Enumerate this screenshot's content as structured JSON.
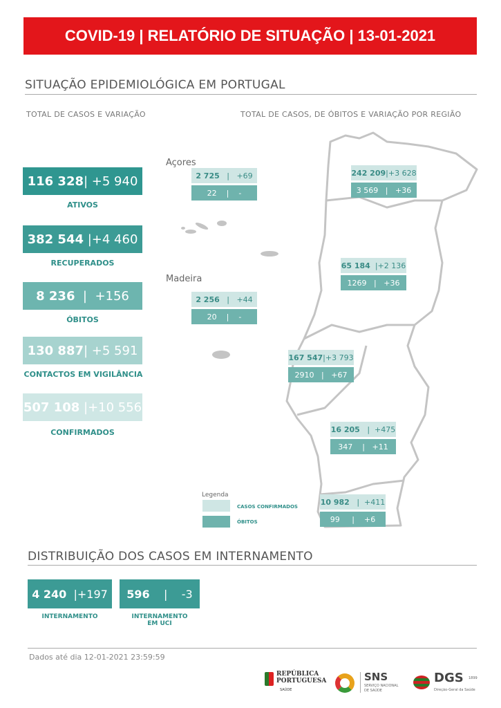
{
  "banner": {
    "title": "COVID-19 | RELATÓRIO DE SITUAÇÃO | 13-01-2021"
  },
  "section1": {
    "title": "SITUAÇÃO EPIDEMIOLÓGICA EM PORTUGAL",
    "left_subtitle": "TOTAL DE CASOS E VARIAÇÃO",
    "right_subtitle": "TOTAL DE CASOS, DE ÓBITOS E VARIAÇÃO POR REGIÃO"
  },
  "kpis": [
    {
      "value": "116 328",
      "change": "+5 940",
      "label": "ATIVOS",
      "color": "#2f9690"
    },
    {
      "value": "382 544",
      "change": "+4 460",
      "label": "RECUPERADOS",
      "color": "#3c9b95"
    },
    {
      "value": "8 236",
      "change": "+156",
      "label": "ÓBITOS",
      "color": "#6db5af"
    },
    {
      "value": "130 887",
      "change": "+5 591",
      "label": "CONTACTOS EM VIGILÂNCIA",
      "color": "#a7d3cf"
    },
    {
      "value": "507 108",
      "change": "+10 556",
      "label": "CONFIRMADOS",
      "color": "#cfe7e5"
    }
  ],
  "regions": {
    "acores": {
      "name": "Açores",
      "cases": "2 725",
      "cases_change": "+69",
      "deaths": "22",
      "deaths_change": "-"
    },
    "madeira": {
      "name": "Madeira",
      "cases": "2 256",
      "cases_change": "+44",
      "deaths": "20",
      "deaths_change": "-"
    },
    "norte": {
      "cases": "242 209",
      "cases_change": "+3 628",
      "deaths": "3 569",
      "deaths_change": "+36"
    },
    "centro": {
      "cases": "65 184",
      "cases_change": "+2 136",
      "deaths": "1269",
      "deaths_change": "+36"
    },
    "lvt": {
      "cases": "167 547",
      "cases_change": "+3 793",
      "deaths": "2910",
      "deaths_change": "+67"
    },
    "alentejo": {
      "cases": "16 205",
      "cases_change": "+475",
      "deaths": "347",
      "deaths_change": "+11"
    },
    "algarve": {
      "cases": "10 982",
      "cases_change": "+411",
      "deaths": "99",
      "deaths_change": "+6"
    }
  },
  "legend": {
    "title": "Legenda",
    "confirmed": "CASOS CONFIRMADOS",
    "deaths": "ÓBITOS",
    "confirmed_color": "#cfe6e4",
    "deaths_color": "#6fb3ad"
  },
  "section2": {
    "title": "DISTRIBUIÇÃO DOS CASOS EM INTERNAMENTO"
  },
  "hospital": [
    {
      "value": "4 240",
      "change": "+197",
      "label_line1": "INTERNAMENTO",
      "label_line2": ""
    },
    {
      "value": "596",
      "change": "-3",
      "label_line1": "INTERNAMENTO",
      "label_line2": "EM UCI"
    }
  ],
  "footer": {
    "note": "Dados até dia 12-01-2021 23:59:59",
    "logo1": "REPÚBLICA PORTUGUESA",
    "logo1_sub": "SAÚDE",
    "logo2": "SNS",
    "logo2_sub1": "SERVIÇO NACIONAL",
    "logo2_sub2": "DE SAÚDE",
    "logo3": "DGS",
    "logo3_sub": "Direção-Geral da Saúde",
    "logo3_year": "1899"
  }
}
